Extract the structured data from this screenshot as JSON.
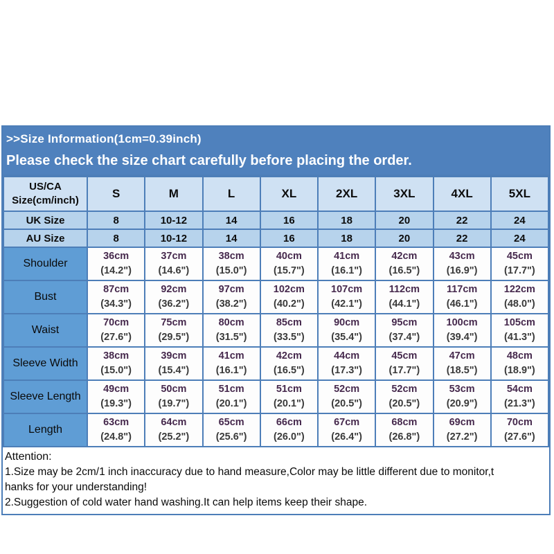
{
  "colors": {
    "border": "#4d7eb8",
    "banner-bg": "#4f81bd",
    "head-bg": "#cfe1f3",
    "region-bg": "#b7d3ec",
    "label-bg": "#5f9dd5",
    "cm-color": "#46294d",
    "inch-color": "#3a3a3a"
  },
  "banner": {
    "line1": ">>Size Information(1cm=0.39inch)",
    "line2": "Please check the size chart carefully before placing the order."
  },
  "size_chart": {
    "header": {
      "label_line1": "US/CA",
      "label_line2": "Size(cm/inch)",
      "sizes": [
        "S",
        "M",
        "L",
        "XL",
        "2XL",
        "3XL",
        "4XL",
        "5XL"
      ]
    },
    "region_rows": [
      {
        "label": "UK Size",
        "values": [
          "8",
          "10-12",
          "14",
          "16",
          "18",
          "20",
          "22",
          "24"
        ]
      },
      {
        "label": "AU Size",
        "values": [
          "8",
          "10-12",
          "14",
          "16",
          "18",
          "20",
          "22",
          "24"
        ]
      }
    ],
    "measurement_rows": [
      {
        "label": "Shoulder",
        "cm": [
          "36cm",
          "37cm",
          "38cm",
          "40cm",
          "41cm",
          "42cm",
          "43cm",
          "45cm"
        ],
        "inch": [
          "(14.2\")",
          "(14.6\")",
          "(15.0\")",
          "(15.7\")",
          "(16.1\")",
          "(16.5\")",
          "(16.9\")",
          "(17.7\")"
        ]
      },
      {
        "label": "Bust",
        "cm": [
          "87cm",
          "92cm",
          "97cm",
          "102cm",
          "107cm",
          "112cm",
          "117cm",
          "122cm"
        ],
        "inch": [
          "(34.3\")",
          "(36.2\")",
          "(38.2\")",
          "(40.2\")",
          "(42.1\")",
          "(44.1\")",
          "(46.1\")",
          "(48.0\")"
        ]
      },
      {
        "label": "Waist",
        "cm": [
          "70cm",
          "75cm",
          "80cm",
          "85cm",
          "90cm",
          "95cm",
          "100cm",
          "105cm"
        ],
        "inch": [
          "(27.6\")",
          "(29.5\")",
          "(31.5\")",
          "(33.5\")",
          "(35.4\")",
          "(37.4\")",
          "(39.4\")",
          "(41.3\")"
        ]
      },
      {
        "label": "Sleeve Width",
        "cm": [
          "38cm",
          "39cm",
          "41cm",
          "42cm",
          "44cm",
          "45cm",
          "47cm",
          "48cm"
        ],
        "inch": [
          "(15.0\")",
          "(15.4\")",
          "(16.1\")",
          "(16.5\")",
          "(17.3\")",
          "(17.7\")",
          "(18.5\")",
          "(18.9\")"
        ]
      },
      {
        "label": "Sleeve Length",
        "cm": [
          "49cm",
          "50cm",
          "51cm",
          "51cm",
          "52cm",
          "52cm",
          "53cm",
          "54cm"
        ],
        "inch": [
          "(19.3\")",
          "(19.7\")",
          "(20.1\")",
          "(20.1\")",
          "(20.5\")",
          "(20.5\")",
          "(20.9\")",
          "(21.3\")"
        ]
      },
      {
        "label": "Length",
        "cm": [
          "63cm",
          "64cm",
          "65cm",
          "66cm",
          "67cm",
          "68cm",
          "69cm",
          "70cm"
        ],
        "inch": [
          "(24.8\")",
          "(25.2\")",
          "(25.6\")",
          "(26.0\")",
          "(26.4\")",
          "(26.8\")",
          "(27.2\")",
          "(27.6\")"
        ]
      }
    ]
  },
  "attention": {
    "title": "Attention:",
    "lines": [
      "1.Size may be 2cm/1 inch inaccuracy due to hand measure,Color may be little different due to monitor,t",
      "hanks for your understanding!",
      "2.Suggestion of cold water hand washing.It can help items keep their shape."
    ]
  }
}
